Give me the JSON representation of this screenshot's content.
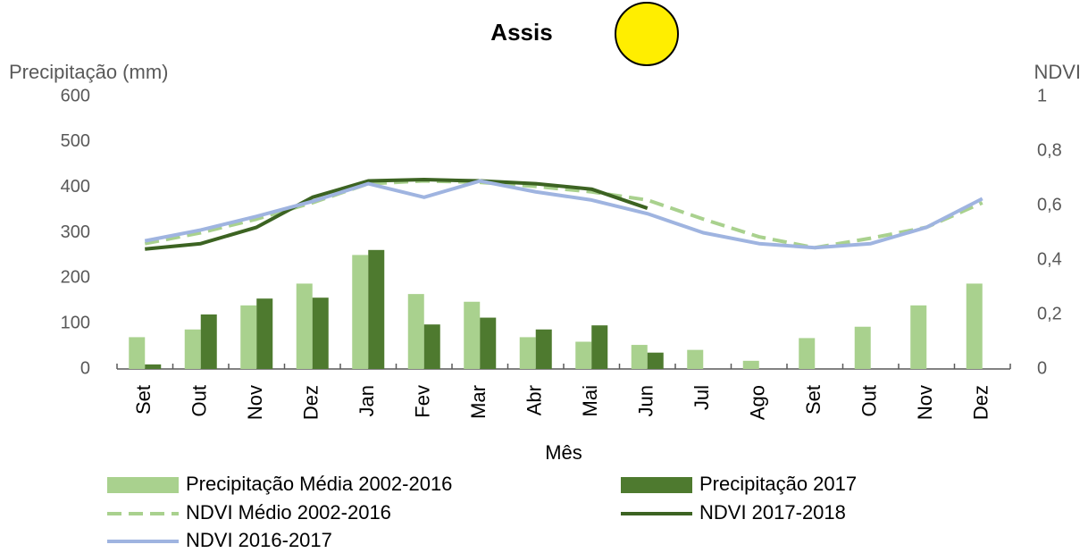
{
  "chart_data": {
    "type": "bar",
    "title": "Assis",
    "y_label": "Precipitação (mm)",
    "y2_label": "NDVI",
    "x_label": "Mês",
    "categories": [
      "Set",
      "Out",
      "Nov",
      "Dez",
      "Jan",
      "Fev",
      "Mar",
      "Abr",
      "Mai",
      "Jun",
      "Jul",
      "Ago",
      "Set",
      "Out",
      "Nov",
      "Dez"
    ],
    "ylim": [
      0,
      600
    ],
    "yticks": [
      0,
      100,
      200,
      300,
      400,
      500,
      600
    ],
    "y2lim": [
      0,
      1
    ],
    "y2ticks": [
      0,
      {
        "value": 0.2,
        "label": "0,2"
      },
      {
        "value": 0.4,
        "label": "0,4"
      },
      {
        "value": 0.6,
        "label": "0,6"
      },
      {
        "value": 0.8,
        "label": "0,8"
      },
      1
    ],
    "series": [
      {
        "name": "Precipitação Média 2002-2016",
        "type": "bar",
        "color": "#a9d18e",
        "values": [
          70,
          87,
          140,
          188,
          251,
          165,
          148,
          70,
          60,
          53,
          42,
          18,
          68,
          93,
          140,
          188
        ]
      },
      {
        "name": "Precipitação 2017",
        "type": "bar",
        "color": "#4e7a2f",
        "values": [
          10,
          120,
          155,
          157,
          262,
          98,
          113,
          87,
          96,
          36,
          null,
          null,
          null,
          null,
          null,
          null
        ]
      },
      {
        "name": "NDVI Médio 2002-2016",
        "type": "line",
        "dashed": true,
        "axis": "y2",
        "color": "#a9d18e",
        "values": [
          0.46,
          0.5,
          0.55,
          0.61,
          0.68,
          0.69,
          0.685,
          0.67,
          0.65,
          0.62,
          0.55,
          0.485,
          0.445,
          0.48,
          0.52,
          0.61
        ]
      },
      {
        "name": "NDVI 2017-2018",
        "type": "line",
        "axis": "y2",
        "color": "#3c6322",
        "values": [
          0.44,
          0.46,
          0.52,
          0.63,
          0.69,
          0.695,
          0.69,
          0.68,
          0.66,
          0.59,
          null,
          null,
          null,
          null,
          null,
          null
        ]
      },
      {
        "name": "NDVI 2016-2017",
        "type": "line",
        "axis": "y2",
        "color": "#9fb4e0",
        "values": [
          0.47,
          0.51,
          0.56,
          0.615,
          0.68,
          0.63,
          0.69,
          0.65,
          0.62,
          0.57,
          0.5,
          0.46,
          0.445,
          0.46,
          0.52,
          0.625
        ]
      }
    ]
  }
}
